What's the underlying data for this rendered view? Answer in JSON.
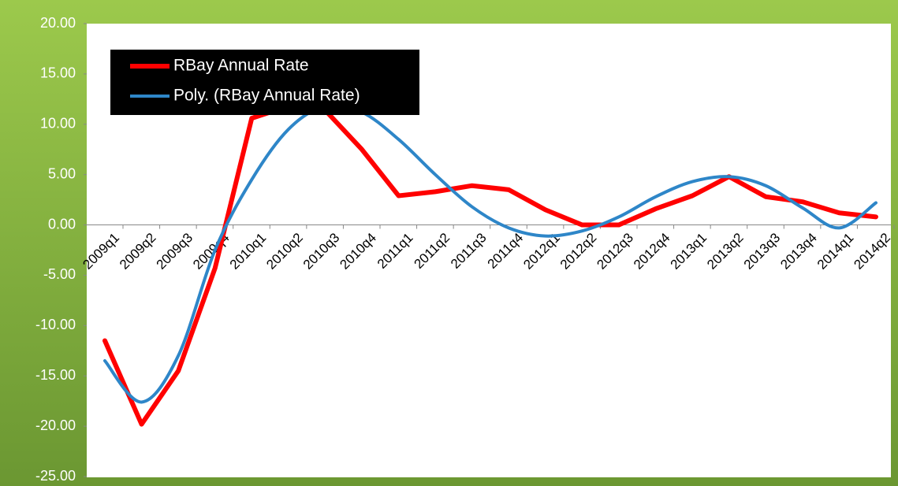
{
  "chart_data": {
    "type": "line",
    "categories": [
      "2009q1",
      "2009q2",
      "2009q3",
      "2009q4",
      "2010q1",
      "2010q2",
      "2010q3",
      "2010q4",
      "2011q1",
      "2011q2",
      "2011q3",
      "2011q4",
      "2012q1",
      "2012q2",
      "2012q3",
      "2012q4",
      "2013q1",
      "2013q2",
      "2013q3",
      "2013q4",
      "2014q1",
      "2014q2"
    ],
    "series": [
      {
        "name": "RBay Annual Rate",
        "color": "#ff0000",
        "smooth": false,
        "values": [
          -11.5,
          -19.8,
          -14.5,
          -4.3,
          10.6,
          11.8,
          11.4,
          7.5,
          2.9,
          3.3,
          3.9,
          3.5,
          1.5,
          0,
          0,
          1.6,
          2.9,
          4.8,
          2.8,
          2.3,
          1.2,
          0.8
        ]
      },
      {
        "name": "Poly. (RBay Annual Rate)",
        "color": "#2e86c8",
        "smooth": true,
        "values": [
          -13.5,
          -17.6,
          -13,
          -2.5,
          4.5,
          9.5,
          11.8,
          11.2,
          8.5,
          5,
          1.8,
          -0.3,
          -1.1,
          -0.6,
          0.8,
          2.8,
          4.3,
          4.8,
          3.9,
          1.7,
          -0.3,
          2.2
        ]
      }
    ],
    "ylim": [
      -25,
      20
    ],
    "yticks": [
      {
        "value": -25,
        "label": "-25.00"
      },
      {
        "value": -20,
        "label": "-20.00"
      },
      {
        "value": -15,
        "label": "-15.00"
      },
      {
        "value": -10,
        "label": "-10.00"
      },
      {
        "value": -5,
        "label": "-5.00"
      },
      {
        "value": 0,
        "label": "0.00"
      },
      {
        "value": 5,
        "label": "5.00"
      },
      {
        "value": 10,
        "label": "10.00"
      },
      {
        "value": 15,
        "label": "15.00"
      },
      {
        "value": 20,
        "label": "20.00"
      }
    ],
    "grid": false,
    "legend": "top-left"
  }
}
